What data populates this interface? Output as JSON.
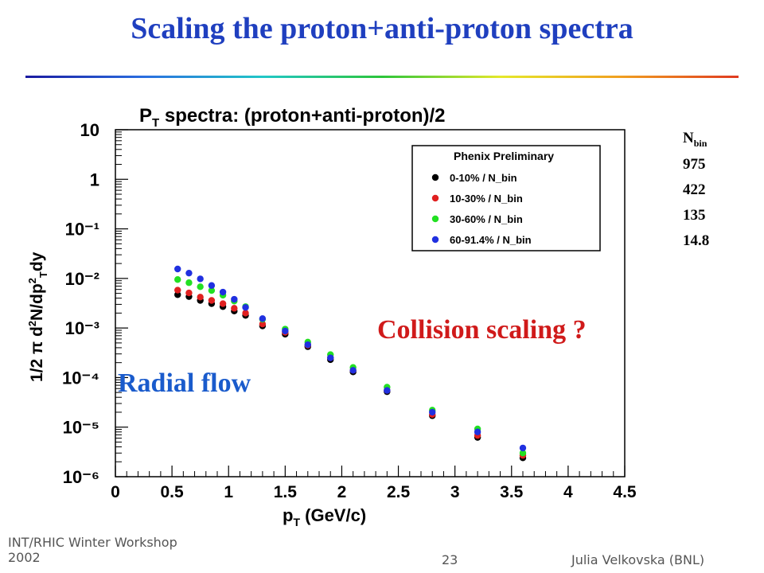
{
  "slide": {
    "title": "Scaling the proton+anti-proton spectra",
    "footer_left_line1": "INT/RHIC Winter Workshop",
    "footer_left_line2": "2002",
    "page_number": "23",
    "footer_right": "Julia Velkovska (BNL)"
  },
  "nbin": {
    "header": "N",
    "header_sub": "bin",
    "values": [
      "975",
      "422",
      "135",
      "14.8"
    ]
  },
  "annotations": {
    "collision": "Collision scaling ?",
    "radial": "Radial flow"
  },
  "colors": {
    "title": "#1f3fbf",
    "collision_text": "#d01a1a",
    "radial_text": "#1a5bcc"
  },
  "chart_data": {
    "type": "scatter",
    "title": "P_T spectra: (proton+anti-proton)/2",
    "xlabel": "p_T (GeV/c)",
    "ylabel": "1/2π d²N/dp_T² dy",
    "xlim": [
      0,
      4.5
    ],
    "ylim_log10": [
      -6,
      1
    ],
    "yscale": "log",
    "grid": false,
    "legend_position": "top-right",
    "legend_title": "Phenix Preliminary",
    "x_ticks": [
      "0",
      "0.5",
      "1",
      "1.5",
      "2",
      "2.5",
      "3",
      "3.5",
      "4",
      "4.5"
    ],
    "y_ticks": [
      "10",
      "1",
      "10⁻¹",
      "10⁻²",
      "10⁻³",
      "10⁻⁴",
      "10⁻⁵",
      "10⁻⁶"
    ],
    "series": [
      {
        "name": "0-10%   / N_bin",
        "color": "#000000",
        "x": [
          0.55,
          0.65,
          0.75,
          0.85,
          0.95,
          1.05,
          1.15,
          1.3,
          1.5,
          1.7,
          1.9,
          2.1,
          2.4,
          2.8,
          3.2,
          3.6
        ],
        "y": [
          0.0047,
          0.0043,
          0.0036,
          0.0031,
          0.0027,
          0.0022,
          0.0018,
          0.0011,
          0.00075,
          0.00042,
          0.00023,
          0.00013,
          5.2e-05,
          1.7e-05,
          6.2e-06,
          2.4e-06
        ]
      },
      {
        "name": "10-30%   / N_bin",
        "color": "#e02020",
        "x": [
          0.55,
          0.65,
          0.75,
          0.85,
          0.95,
          1.05,
          1.15,
          1.3,
          1.5,
          1.7,
          1.9,
          2.1,
          2.4,
          2.8,
          3.2,
          3.6
        ],
        "y": [
          0.0058,
          0.0051,
          0.0042,
          0.0036,
          0.0031,
          0.0025,
          0.002,
          0.0012,
          0.00082,
          0.00045,
          0.00025,
          0.00014,
          5.5e-05,
          1.8e-05,
          6.8e-06,
          2.7e-06
        ]
      },
      {
        "name": "30-60%   / N_bin",
        "color": "#22e022",
        "x": [
          0.55,
          0.65,
          0.75,
          0.85,
          0.95,
          1.05,
          1.15,
          1.3,
          1.5,
          1.7,
          1.9,
          2.1,
          2.4,
          2.8,
          3.2,
          3.6
        ],
        "y": [
          0.0095,
          0.0082,
          0.0068,
          0.0057,
          0.0046,
          0.0035,
          0.0027,
          0.0015,
          0.00095,
          0.00052,
          0.00029,
          0.00016,
          6.4e-05,
          2.2e-05,
          9.2e-06,
          3e-06
        ]
      },
      {
        "name": "60-91.4% / N_bin",
        "color": "#2030e0",
        "x": [
          0.55,
          0.65,
          0.75,
          0.85,
          0.95,
          1.05,
          1.15,
          1.3,
          1.5,
          1.7,
          1.9,
          2.1,
          2.4,
          2.8,
          3.2,
          3.6
        ],
        "y": [
          0.0155,
          0.0128,
          0.0098,
          0.0072,
          0.0053,
          0.0038,
          0.0026,
          0.00155,
          0.00087,
          0.00046,
          0.00025,
          0.00014,
          5.5e-05,
          2e-05,
          8e-06,
          3.8e-06
        ]
      }
    ]
  }
}
